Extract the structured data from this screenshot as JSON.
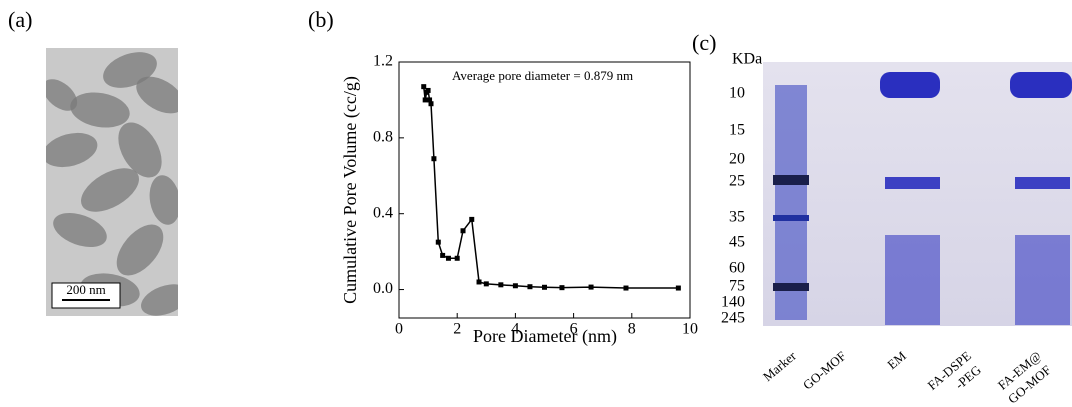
{
  "panels": {
    "a": {
      "label": "(a)",
      "scale_bar": "200 nm"
    },
    "c": {
      "label": "(c)",
      "unit": "KDa",
      "markers": [
        "10",
        "15",
        "20",
        "25",
        "35",
        "45",
        "60",
        "75",
        "140",
        "245"
      ],
      "lanes": [
        [
          "Marker"
        ],
        [
          "GO-MOF"
        ],
        [
          "EM"
        ],
        [
          "FA-DSPE",
          "-PEG"
        ],
        [
          "FA-EM@",
          "GO-MOF"
        ]
      ]
    }
  },
  "chart_data": {
    "type": "line",
    "panel_label": "(b)",
    "annotation": "Average pore diameter = 0.879 nm",
    "x_label": "Pore Diameter (nm)",
    "y_label": "Cumulative Pore Volume (cc/g)",
    "x": [
      0.85,
      0.9,
      0.95,
      1.0,
      1.05,
      1.1,
      1.2,
      1.35,
      1.5,
      1.7,
      2.0,
      2.2,
      2.5,
      2.75,
      3.0,
      3.5,
      4.0,
      4.5,
      5.0,
      5.6,
      6.6,
      7.8,
      9.6
    ],
    "series": [
      {
        "color": "#000000",
        "values": [
          1.07,
          1.0,
          1.04,
          1.05,
          1.0,
          0.98,
          0.69,
          0.25,
          0.18,
          0.165,
          0.165,
          0.31,
          0.37,
          0.04,
          0.03,
          0.025,
          0.02,
          0.015,
          0.012,
          0.01,
          0.013,
          0.008,
          0.008
        ]
      }
    ],
    "xlim": [
      0,
      10
    ],
    "ylim": [
      -0.15,
      1.2
    ],
    "xticks": [
      0,
      2,
      4,
      6,
      8,
      10
    ],
    "yticks": [
      {
        "value": 0,
        "label": "0.0"
      },
      {
        "value": 0.4,
        "label": "0.4"
      },
      {
        "value": 0.8,
        "label": "0.8"
      },
      {
        "value": 1.2,
        "label": "1.2"
      }
    ]
  }
}
